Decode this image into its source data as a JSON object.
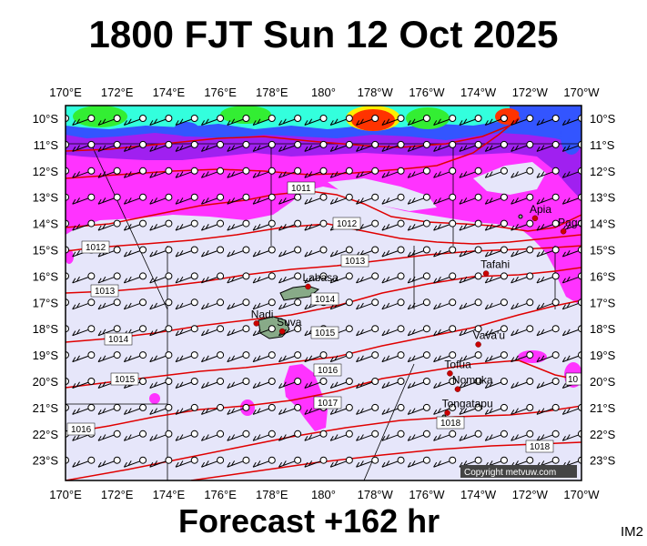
{
  "title": "1800 FJT Sun 12 Oct 2025",
  "footer": "Forecast +162 hr",
  "code": "IM2",
  "copyright": "Copyright metvuw.com",
  "lon_labels": [
    "170°E",
    "172°E",
    "174°E",
    "176°E",
    "178°E",
    "180°",
    "178°W",
    "176°W",
    "174°W",
    "172°W",
    "170°W"
  ],
  "lat_labels": [
    "10°S",
    "11°S",
    "12°S",
    "13°S",
    "14°S",
    "15°S",
    "16°S",
    "17°S",
    "18°S",
    "19°S",
    "20°S",
    "21°S",
    "22°S",
    "23°S"
  ],
  "isobars": [
    "1011",
    "1012",
    "1012",
    "1013",
    "1013",
    "1014",
    "1014",
    "1015",
    "1015",
    "1016",
    "1016",
    "1017",
    "1018",
    "1018",
    "10"
  ],
  "places": [
    {
      "name": "Apia",
      "lon": -171.8,
      "lat": -13.8
    },
    {
      "name": "Pago Pago",
      "lon": -170.7,
      "lat": -14.3
    },
    {
      "name": "Tafahi",
      "lon": -173.7,
      "lat": -15.9
    },
    {
      "name": "Labasa",
      "lon": 179.4,
      "lat": -16.4
    },
    {
      "name": "Nadi",
      "lon": 177.4,
      "lat": -17.8
    },
    {
      "name": "Suva",
      "lon": 178.4,
      "lat": -18.1
    },
    {
      "name": "Vava'u",
      "lon": -174.0,
      "lat": -18.6
    },
    {
      "name": "Tofua",
      "lon": -175.1,
      "lat": -19.7
    },
    {
      "name": "Nomuka",
      "lon": -174.8,
      "lat": -20.3
    },
    {
      "name": "Tongatapu",
      "lon": -175.2,
      "lat": -21.2
    }
  ],
  "colors": {
    "background": "#e6e6fa",
    "isobar": "#e00000",
    "rain_light": "#ff33ff",
    "rain_mid": "#a020f0",
    "rain_heavy": "#3355ff",
    "rain_cyan": "#33ffdd",
    "rain_green": "#33ee33",
    "rain_yellow": "#ffee00",
    "rain_red": "#ff3300"
  }
}
